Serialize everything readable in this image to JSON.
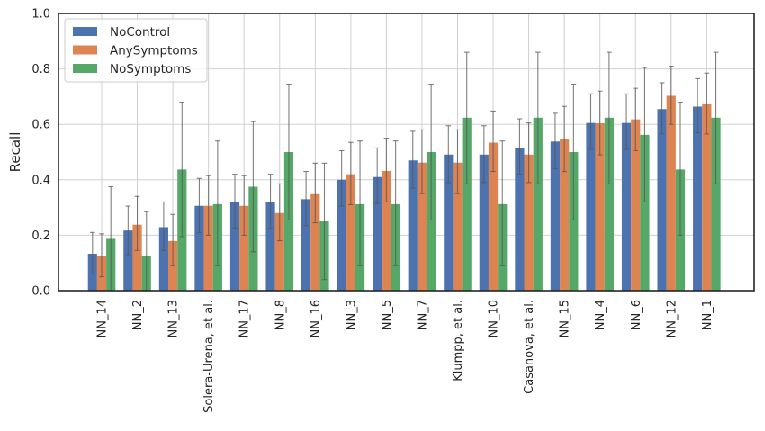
{
  "chart_data": {
    "type": "bar",
    "title": "",
    "xlabel": "",
    "ylabel": "Recall",
    "ylim": [
      0,
      1.0
    ],
    "yticks": [
      "0.0",
      "0.2",
      "0.4",
      "0.6",
      "0.8",
      "1.0"
    ],
    "grid": true,
    "legend_position": "top-left",
    "categories": [
      "NN_14",
      "NN_2",
      "NN_13",
      "Solera-Urena, et al.",
      "NN_17",
      "NN_8",
      "NN_16",
      "NN_3",
      "NN_5",
      "NN_7",
      "Klumpp, et al.",
      "NN_10",
      "Casanova, et al.",
      "NN_15",
      "NN_4",
      "NN_6",
      "NN_12",
      "NN_1"
    ],
    "series": [
      {
        "name": "NoControl",
        "color": "#4c72b0",
        "values": [
          0.133,
          0.217,
          0.229,
          0.306,
          0.32,
          0.32,
          0.33,
          0.4,
          0.41,
          0.47,
          0.491,
          0.491,
          0.516,
          0.538,
          0.605,
          0.605,
          0.655,
          0.664
        ],
        "err_low": [
          0.06,
          0.13,
          0.145,
          0.21,
          0.225,
          0.225,
          0.235,
          0.305,
          0.315,
          0.37,
          0.39,
          0.39,
          0.42,
          0.44,
          0.51,
          0.51,
          0.565,
          0.57
        ],
        "err_high": [
          0.21,
          0.305,
          0.32,
          0.405,
          0.42,
          0.42,
          0.43,
          0.505,
          0.515,
          0.575,
          0.595,
          0.595,
          0.62,
          0.64,
          0.71,
          0.71,
          0.75,
          0.765
        ]
      },
      {
        "name": "AnySymptoms",
        "color": "#dd8452",
        "values": [
          0.125,
          0.238,
          0.179,
          0.306,
          0.306,
          0.28,
          0.348,
          0.42,
          0.432,
          0.462,
          0.462,
          0.534,
          0.491,
          0.548,
          0.604,
          0.618,
          0.703,
          0.672
        ],
        "err_low": [
          0.05,
          0.145,
          0.09,
          0.2,
          0.2,
          0.18,
          0.245,
          0.31,
          0.32,
          0.35,
          0.35,
          0.43,
          0.39,
          0.43,
          0.49,
          0.505,
          0.6,
          0.565
        ],
        "err_high": [
          0.205,
          0.34,
          0.275,
          0.415,
          0.415,
          0.385,
          0.46,
          0.535,
          0.55,
          0.58,
          0.58,
          0.648,
          0.605,
          0.665,
          0.72,
          0.73,
          0.81,
          0.785
        ]
      },
      {
        "name": "NoSymptoms",
        "color": "#55a868",
        "values": [
          0.187,
          0.124,
          0.437,
          0.312,
          0.375,
          0.5,
          0.25,
          0.312,
          0.312,
          0.5,
          0.624,
          0.312,
          0.624,
          0.5,
          0.624,
          0.562,
          0.437,
          0.624
        ],
        "err_low": [
          0.0,
          0.0,
          0.195,
          0.09,
          0.14,
          0.255,
          0.04,
          0.09,
          0.09,
          0.255,
          0.385,
          0.09,
          0.385,
          0.255,
          0.385,
          0.32,
          0.2,
          0.385
        ],
        "err_high": [
          0.375,
          0.285,
          0.68,
          0.54,
          0.61,
          0.745,
          0.46,
          0.54,
          0.54,
          0.745,
          0.86,
          0.54,
          0.86,
          0.745,
          0.86,
          0.805,
          0.68,
          0.86
        ]
      }
    ]
  }
}
